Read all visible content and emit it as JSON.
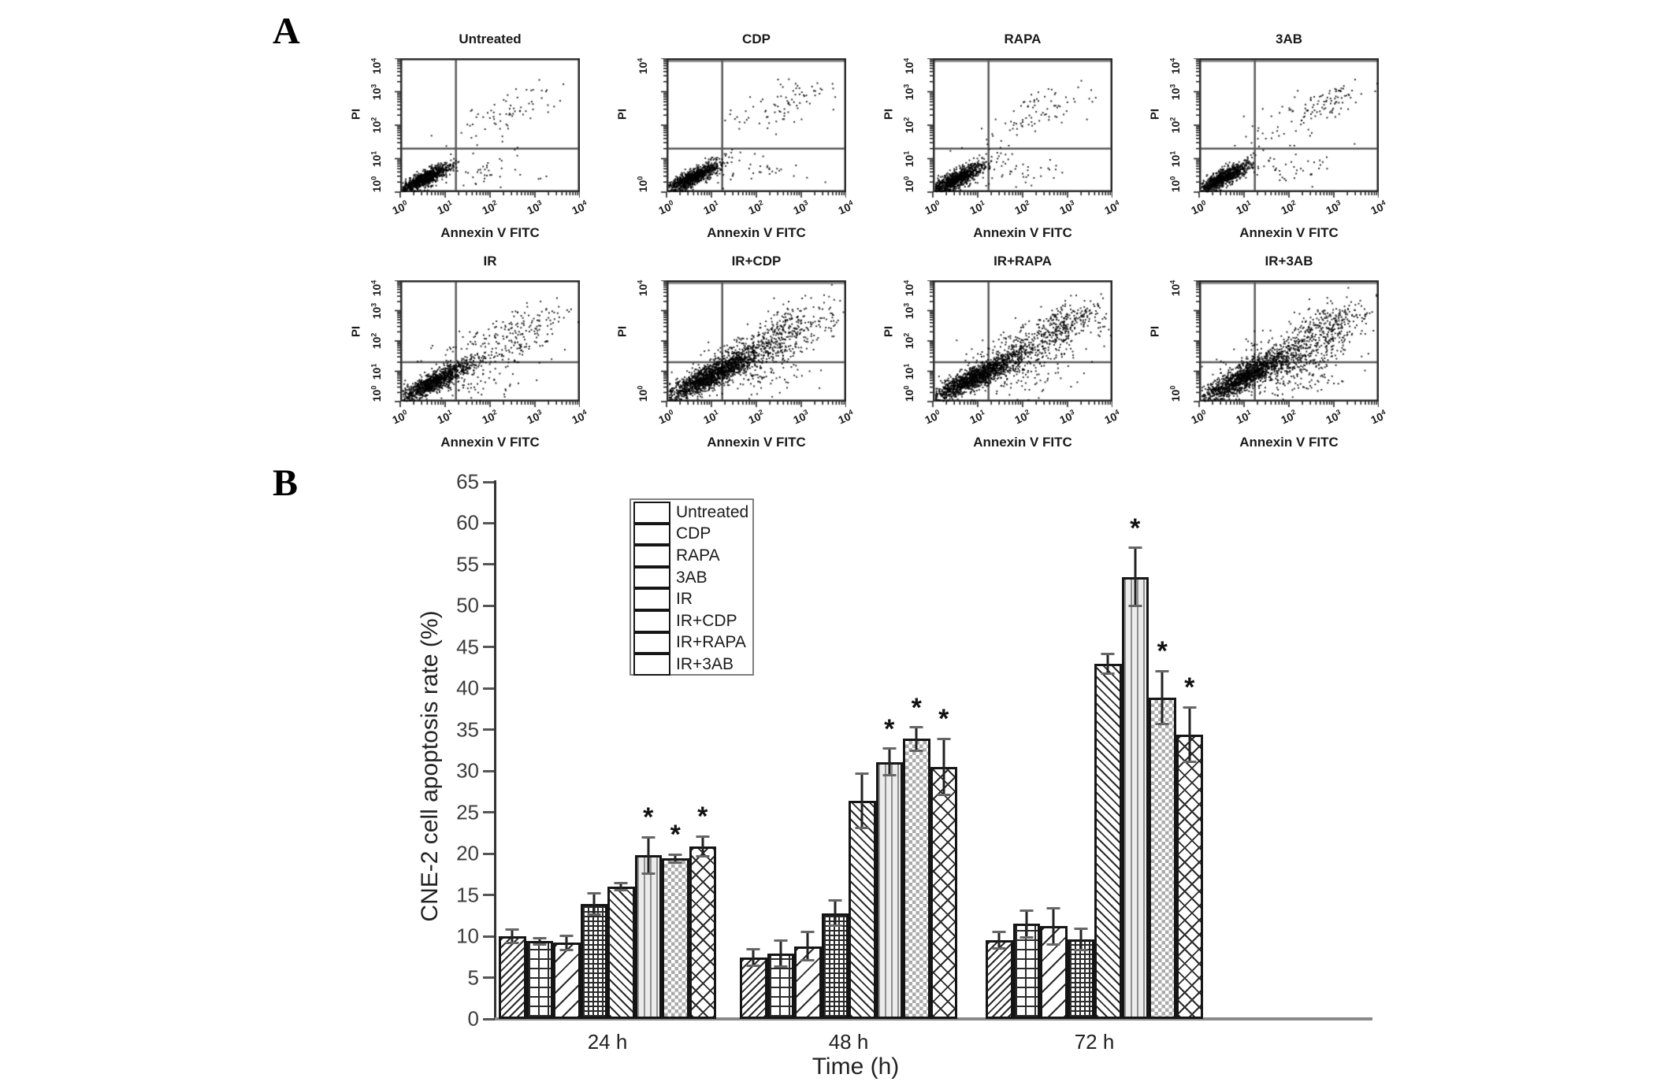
{
  "panel_a_label": "A",
  "panel_b_label": "B",
  "flow_plots": {
    "x_axis_label": "Annexin V FITC",
    "y_axis_label": "PI",
    "x_tick_exponents": [
      0,
      1,
      2,
      3,
      4
    ],
    "plots": [
      {
        "id": "untreated",
        "title": "Untreated",
        "row": 0,
        "col": 0,
        "y_tick_exponents": [
          0,
          1,
          2,
          3,
          4
        ],
        "top_band": false,
        "clusters": [
          [
            0.52,
            0.42,
            0.3,
            0.22,
            950,
            0.85
          ],
          [
            2.45,
            2.45,
            0.65,
            0.45,
            70,
            0.8
          ],
          [
            1.9,
            0.6,
            0.65,
            0.28,
            45,
            0.1
          ]
        ]
      },
      {
        "id": "cdp",
        "title": "CDP",
        "row": 0,
        "col": 1,
        "y_tick_exponents": [
          0,
          4
        ],
        "top_band": true,
        "clusters": [
          [
            0.55,
            0.45,
            0.32,
            0.24,
            1000,
            0.85
          ],
          [
            2.6,
            2.6,
            0.55,
            0.4,
            80,
            0.7
          ],
          [
            1.8,
            0.55,
            0.6,
            0.3,
            40,
            0.1
          ]
        ]
      },
      {
        "id": "rapa",
        "title": "RAPA",
        "row": 0,
        "col": 2,
        "y_tick_exponents": [
          0,
          1,
          2,
          3,
          4
        ],
        "top_band": true,
        "clusters": [
          [
            0.5,
            0.4,
            0.34,
            0.26,
            1000,
            0.85
          ],
          [
            2.4,
            2.4,
            0.7,
            0.5,
            85,
            0.75
          ],
          [
            1.9,
            0.6,
            0.6,
            0.3,
            40,
            0.1
          ]
        ]
      },
      {
        "id": "3ab",
        "title": "3AB",
        "row": 0,
        "col": 3,
        "y_tick_exponents": [
          0,
          1,
          2,
          3,
          4
        ],
        "top_band": true,
        "clusters": [
          [
            0.5,
            0.42,
            0.3,
            0.24,
            950,
            0.85
          ],
          [
            2.85,
            2.7,
            0.45,
            0.35,
            90,
            0.6
          ],
          [
            2.1,
            0.7,
            0.6,
            0.3,
            40,
            0.1
          ],
          [
            1.6,
            1.8,
            0.5,
            0.4,
            30,
            0.5
          ]
        ]
      },
      {
        "id": "ir",
        "title": "IR",
        "row": 1,
        "col": 0,
        "y_tick_exponents": [
          0,
          1,
          2,
          3,
          4
        ],
        "top_band": false,
        "clusters": [
          [
            0.75,
            0.68,
            0.42,
            0.34,
            1100,
            0.88
          ],
          [
            2.0,
            1.6,
            0.7,
            0.5,
            160,
            0.55
          ],
          [
            2.7,
            2.5,
            0.55,
            0.45,
            110,
            0.6
          ],
          [
            1.6,
            0.6,
            0.5,
            0.25,
            50,
            0.1
          ]
        ]
      },
      {
        "id": "ir_cdp",
        "title": "IR+CDP",
        "row": 1,
        "col": 1,
        "y_tick_exponents": [
          0,
          4
        ],
        "top_band": true,
        "clusters": [
          [
            0.95,
            0.85,
            0.5,
            0.4,
            1500,
            0.88
          ],
          [
            1.8,
            1.5,
            0.6,
            0.45,
            350,
            0.6
          ],
          [
            2.7,
            2.4,
            0.6,
            0.5,
            260,
            0.65
          ],
          [
            2.2,
            0.8,
            0.6,
            0.3,
            70,
            0.2
          ]
        ]
      },
      {
        "id": "ir_rapa",
        "title": "IR+RAPA",
        "row": 1,
        "col": 2,
        "y_tick_exponents": [
          0,
          1,
          2,
          3,
          4
        ],
        "top_band": false,
        "clusters": [
          [
            0.9,
            0.8,
            0.48,
            0.38,
            1400,
            0.88
          ],
          [
            1.9,
            1.5,
            0.6,
            0.45,
            320,
            0.6
          ],
          [
            2.95,
            2.65,
            0.4,
            0.32,
            200,
            0.5
          ],
          [
            2.5,
            2.2,
            0.7,
            0.5,
            150,
            0.6
          ],
          [
            2.0,
            0.7,
            0.6,
            0.3,
            60,
            0.2
          ]
        ]
      },
      {
        "id": "ir_3ab",
        "title": "IR+3AB",
        "row": 1,
        "col": 3,
        "y_tick_exponents": [
          0,
          4
        ],
        "top_band": true,
        "clusters": [
          [
            0.95,
            0.8,
            0.5,
            0.4,
            1300,
            0.87
          ],
          [
            1.9,
            1.4,
            0.65,
            0.5,
            400,
            0.55
          ],
          [
            2.9,
            2.6,
            0.45,
            0.38,
            220,
            0.55
          ],
          [
            2.3,
            1.9,
            0.7,
            0.5,
            160,
            0.6
          ],
          [
            2.2,
            0.75,
            0.6,
            0.3,
            60,
            0.2
          ]
        ]
      }
    ]
  },
  "chart_data": {
    "type": "bar",
    "title": "",
    "xlabel": "Time (h)",
    "ylabel": "CNE-2 cell apoptosis rate (%)",
    "ylim": [
      0,
      65
    ],
    "ytick_step": 5,
    "grid": false,
    "legend_position": "upper-left-inside",
    "significance_marker": "*",
    "categories": [
      "24 h",
      "48 h",
      "72 h"
    ],
    "series": [
      {
        "name": "Untreated",
        "pattern": "untreated",
        "values": [
          10.0,
          7.4,
          9.5
        ],
        "errors": [
          0.8,
          1.0,
          1.0
        ],
        "significant": [
          false,
          false,
          false
        ]
      },
      {
        "name": "CDP",
        "pattern": "cdp",
        "values": [
          9.4,
          7.9,
          11.5
        ],
        "errors": [
          0.4,
          1.6,
          1.6
        ],
        "significant": [
          false,
          false,
          false
        ]
      },
      {
        "name": "RAPA",
        "pattern": "rapa",
        "values": [
          9.2,
          8.8,
          11.2
        ],
        "errors": [
          0.9,
          1.7,
          2.2
        ],
        "significant": [
          false,
          false,
          false
        ]
      },
      {
        "name": "3AB",
        "pattern": "3ab",
        "values": [
          13.9,
          12.8,
          9.6
        ],
        "errors": [
          1.3,
          1.5,
          1.3
        ],
        "significant": [
          false,
          false,
          false
        ]
      },
      {
        "name": "IR",
        "pattern": "ir",
        "values": [
          16.0,
          26.4,
          43.0
        ],
        "errors": [
          0.4,
          3.3,
          1.2
        ],
        "significant": [
          false,
          false,
          false
        ]
      },
      {
        "name": "IR+CDP",
        "pattern": "ir_cdp",
        "values": [
          19.8,
          31.1,
          53.5
        ],
        "errors": [
          2.2,
          1.6,
          3.5
        ],
        "significant": [
          true,
          true,
          true
        ]
      },
      {
        "name": "IR+RAPA",
        "pattern": "ir_rapa",
        "values": [
          19.4,
          33.9,
          38.9
        ],
        "errors": [
          0.5,
          1.4,
          3.2
        ],
        "significant": [
          true,
          true,
          true
        ]
      },
      {
        "name": "IR+3AB",
        "pattern": "ir_3ab",
        "values": [
          20.9,
          30.5,
          34.4
        ],
        "errors": [
          1.2,
          3.4,
          3.3
        ],
        "significant": [
          true,
          true,
          true
        ]
      }
    ],
    "colors": {
      "line": "#2b2b2b",
      "axis": "#333333",
      "baseline": "#8a8a8a",
      "gray_fill": "#ececec"
    }
  }
}
